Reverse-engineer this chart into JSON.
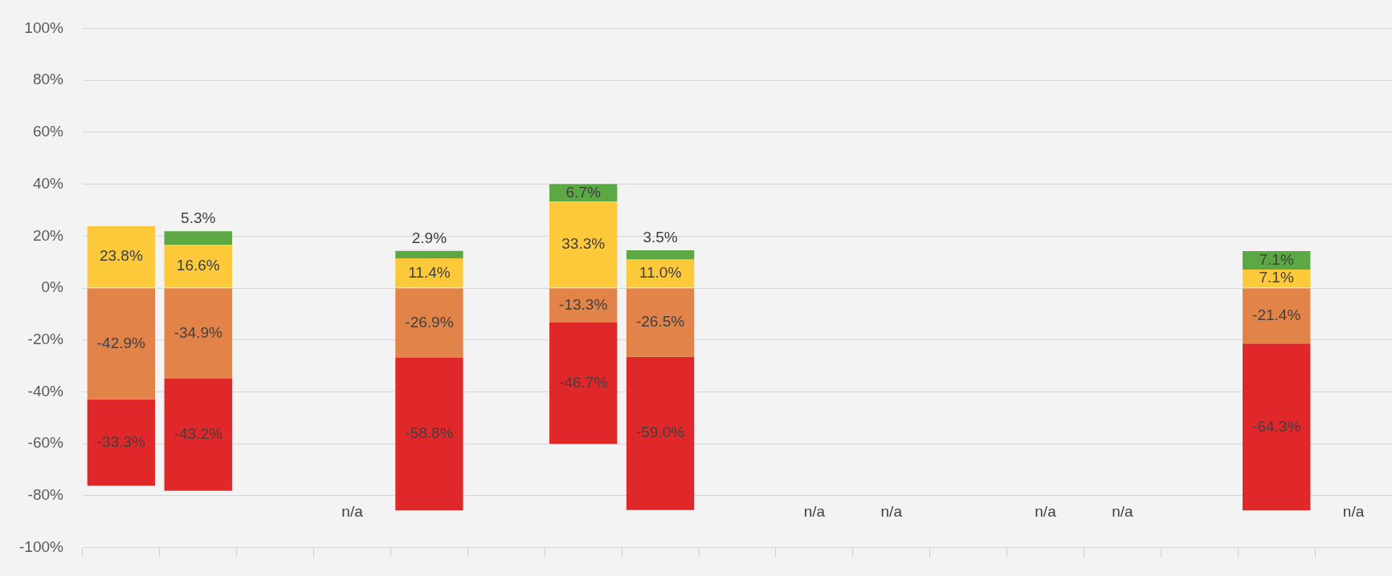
{
  "chart_data": {
    "type": "bar",
    "stacked": true,
    "categories": [
      null,
      null,
      null,
      null,
      null,
      null,
      null,
      null,
      null,
      null,
      null,
      null,
      null,
      null,
      null,
      null,
      null
    ],
    "series": [
      {
        "color": "#fcc93a",
        "values": [
          23.8,
          16.6,
          null,
          null,
          11.4,
          null,
          33.3,
          11.0,
          null,
          null,
          null,
          null,
          null,
          null,
          null,
          7.1,
          null
        ],
        "value_labels": [
          "23.8%",
          "16.6%",
          null,
          null,
          "11.4%",
          null,
          "33.3%",
          "11.0%",
          null,
          null,
          null,
          null,
          null,
          null,
          null,
          "7.1%",
          null
        ]
      },
      {
        "color": "#5ba845",
        "values": [
          null,
          5.3,
          null,
          null,
          2.9,
          null,
          6.7,
          3.5,
          null,
          null,
          null,
          null,
          null,
          null,
          null,
          7.1,
          null
        ],
        "value_labels": [
          null,
          "5.3%",
          null,
          null,
          "2.9%",
          null,
          "6.7%",
          "3.5%",
          null,
          null,
          null,
          null,
          null,
          null,
          null,
          "7.1%",
          null
        ]
      },
      {
        "color": "#e2844a",
        "values": [
          -42.9,
          -34.9,
          null,
          null,
          -26.9,
          null,
          -13.3,
          -26.5,
          null,
          null,
          null,
          null,
          null,
          null,
          null,
          -21.4,
          null
        ],
        "value_labels": [
          "-42.9%",
          "-34.9%",
          null,
          null,
          "-26.9%",
          null,
          "-13.3%",
          "-26.5%",
          null,
          null,
          null,
          null,
          null,
          null,
          null,
          "-21.4%",
          null
        ]
      },
      {
        "color": "#e0282b",
        "values": [
          -33.3,
          -43.2,
          null,
          null,
          -58.8,
          null,
          -46.7,
          -59.0,
          null,
          null,
          null,
          null,
          null,
          null,
          null,
          -64.3,
          null
        ],
        "value_labels": [
          "-33.3%",
          "-43.2%",
          null,
          "n/a",
          "-58.8%",
          null,
          "-46.7%",
          "-59.0%",
          null,
          "n/a",
          "n/a",
          null,
          "n/a",
          "n/a",
          null,
          "-64.3%",
          "n/a"
        ]
      }
    ],
    "ylim": [
      -100,
      100
    ],
    "yticks": [
      {
        "value": -100,
        "label": "-100%"
      },
      {
        "value": -80,
        "label": "-80%"
      },
      {
        "value": -60,
        "label": "-60%"
      },
      {
        "value": -40,
        "label": "-40%"
      },
      {
        "value": -20,
        "label": "-20%"
      },
      {
        "value": 0,
        "label": "0%"
      },
      {
        "value": 20,
        "label": "20%"
      },
      {
        "value": 40,
        "label": "40%"
      },
      {
        "value": 60,
        "label": "60%"
      },
      {
        "value": 80,
        "label": "80%"
      },
      {
        "value": 100,
        "label": "100%"
      }
    ],
    "grid": "y",
    "legend": false
  }
}
